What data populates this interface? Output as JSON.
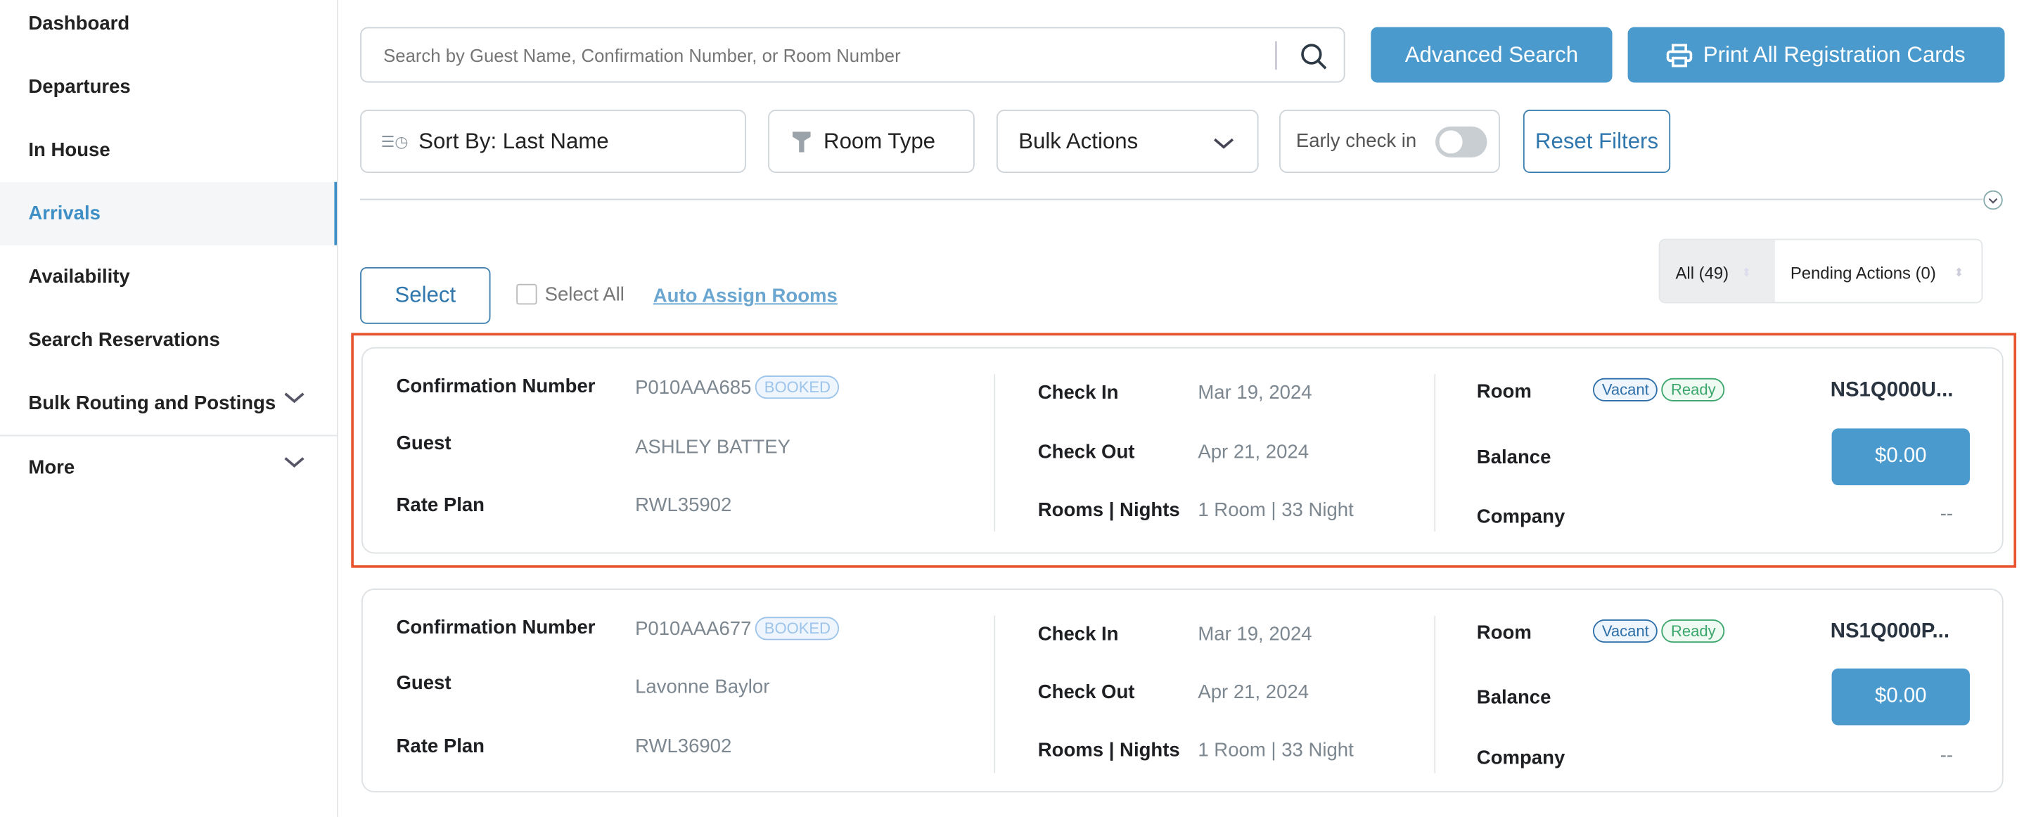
{
  "sidebar": {
    "items": [
      {
        "label": "Dashboard"
      },
      {
        "label": "Departures"
      },
      {
        "label": "In House"
      },
      {
        "label": "Arrivals",
        "active": true
      },
      {
        "label": "Availability"
      },
      {
        "label": "Search Reservations"
      },
      {
        "label": "Bulk Routing and Postings"
      },
      {
        "label": "More"
      }
    ]
  },
  "search": {
    "placeholder": "Search by Guest Name, Confirmation Number, or Room Number",
    "value": ""
  },
  "toolbar": {
    "advanced_search": "Advanced Search",
    "print_all": "Print All Registration Cards",
    "sort_by": "Sort By: Last Name",
    "room_type": "Room Type",
    "bulk_actions": "Bulk Actions",
    "early_checkin": "Early check in",
    "early_checkin_on": false,
    "reset_filters": "Reset Filters"
  },
  "list": {
    "select": "Select",
    "select_all": "Select All",
    "auto_assign": "Auto Assign Rooms",
    "tabs": [
      {
        "label": "All (49)",
        "active": true
      },
      {
        "label": "Pending Actions (0)"
      }
    ]
  },
  "labels": {
    "confirmation": "Confirmation Number",
    "guest": "Guest",
    "rate_plan": "Rate Plan",
    "check_in": "Check In",
    "check_out": "Check Out",
    "rooms_nights": "Rooms | Nights",
    "room": "Room",
    "balance": "Balance",
    "company": "Company"
  },
  "colors": {
    "accent": "#4a9acd",
    "highlight": "#e8542f"
  },
  "cards": [
    {
      "confirmation": "P010AAA685",
      "status": "BOOKED",
      "guest": "ASHLEY BATTEY",
      "rate_plan": "RWL35902",
      "check_in": "Mar 19, 2024",
      "check_out": "Apr 21, 2024",
      "rooms_nights": "1 Room | 33 Night",
      "room_badges": [
        "Vacant",
        "Ready"
      ],
      "room": "NS1Q000U...",
      "balance": "$0.00",
      "company": "--"
    },
    {
      "confirmation": "P010AAA677",
      "status": "BOOKED",
      "guest": "Lavonne Baylor",
      "rate_plan": "RWL36902",
      "check_in": "Mar 19, 2024",
      "check_out": "Apr 21, 2024",
      "rooms_nights": "1 Room | 33 Night",
      "room_badges": [
        "Vacant",
        "Ready"
      ],
      "room": "NS1Q000P...",
      "balance": "$0.00",
      "company": "--"
    }
  ]
}
